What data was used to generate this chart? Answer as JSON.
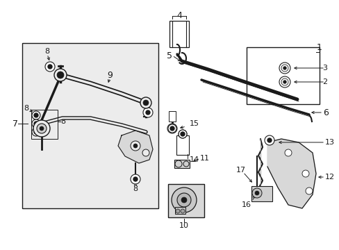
{
  "bg_color": "#ffffff",
  "line_color": "#1a1a1a",
  "box_fill": "#e8e8e8",
  "fig_width": 4.89,
  "fig_height": 3.6,
  "dpi": 100,
  "label_fontsize": 8,
  "label_fontsize_large": 9
}
